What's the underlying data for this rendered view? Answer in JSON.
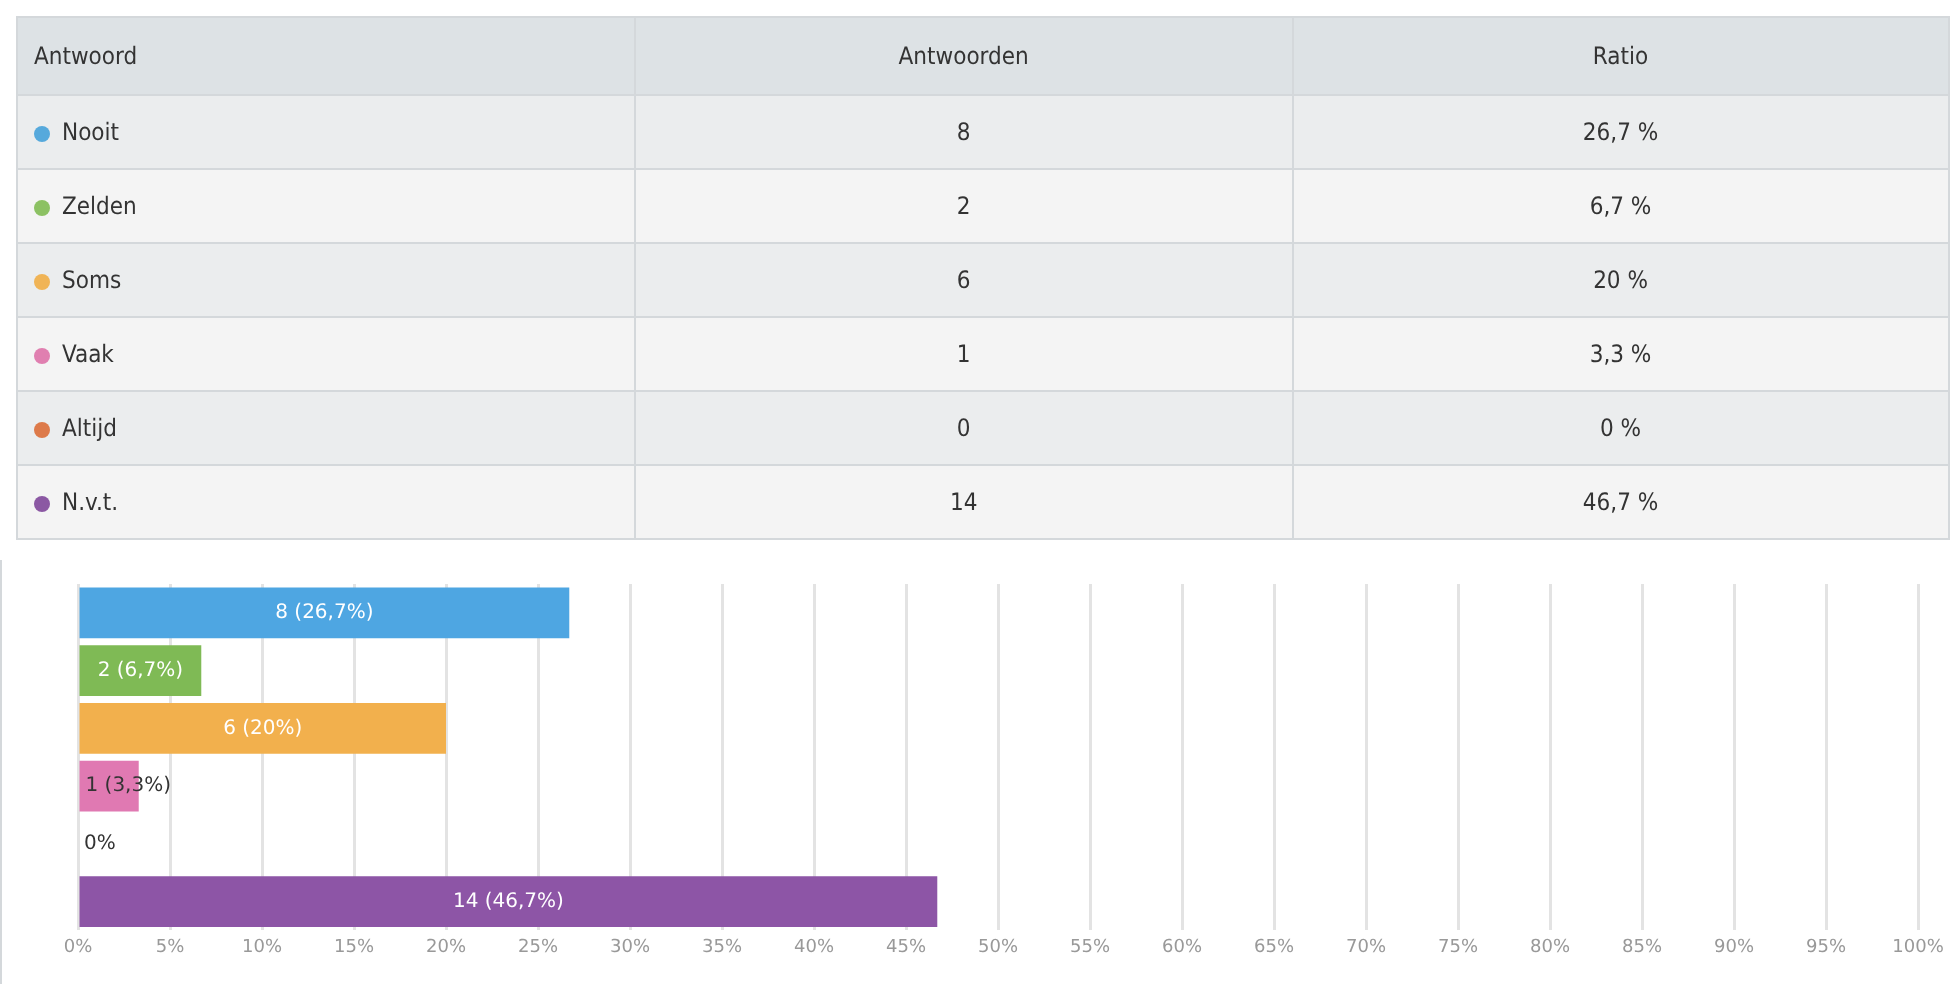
{
  "chart_data": [
    {
      "type": "other",
      "annotations": [
        "Antwoord",
        "Antwoorden",
        "Ratio",
        "8",
        "26,7 %",
        "2",
        "6,7 %",
        "6",
        "20 %",
        "1",
        "3,3 %",
        "0",
        "0 %",
        "14",
        "46,7 %"
      ],
      "categories": [
        "Nooit",
        "Zelden",
        "Soms",
        "Vaak",
        "Altijd",
        "N.v.t."
      ],
      "colors": [
        "#56a9dc",
        "#8cc163",
        "#f0b456",
        "#e07fb0",
        "#dd7a4a",
        "#8b58a3"
      ]
    },
    {
      "type": "bar",
      "orientation": "horizontal",
      "categories": [
        null,
        null,
        null,
        null,
        null,
        null
      ],
      "values": [
        26.7,
        6.7,
        20,
        3.3,
        0,
        46.7
      ],
      "colors": [
        "#4ea6e2",
        "#7fba55",
        "#f2b04d",
        "#e079b2",
        "#dd7a4a",
        "#8d55a6"
      ],
      "value_labels": [
        "8 (26,7%)",
        "2 (6,7%)",
        "6 (20%)",
        "1 (3,3%)",
        "0%",
        "14 (46,7%)"
      ],
      "xlim": [
        0,
        100
      ],
      "xticks": [
        {
          "value": 0,
          "label": "0%"
        },
        {
          "value": 5,
          "label": "5%"
        },
        {
          "value": 10,
          "label": "10%"
        },
        {
          "value": 15,
          "label": "15%"
        },
        {
          "value": 20,
          "label": "20%"
        },
        {
          "value": 25,
          "label": "25%"
        },
        {
          "value": 30,
          "label": "30%"
        },
        {
          "value": 35,
          "label": "35%"
        },
        {
          "value": 40,
          "label": "40%"
        },
        {
          "value": 45,
          "label": "45%"
        },
        {
          "value": 50,
          "label": "50%"
        },
        {
          "value": 55,
          "label": "55%"
        },
        {
          "value": 60,
          "label": "60%"
        },
        {
          "value": 65,
          "label": "65%"
        },
        {
          "value": 70,
          "label": "70%"
        },
        {
          "value": 75,
          "label": "75%"
        },
        {
          "value": 80,
          "label": "80%"
        },
        {
          "value": 85,
          "label": "85%"
        },
        {
          "value": 90,
          "label": "90%"
        },
        {
          "value": 95,
          "label": "95%"
        },
        {
          "value": 100,
          "label": "100%"
        }
      ],
      "grid": "x"
    }
  ]
}
